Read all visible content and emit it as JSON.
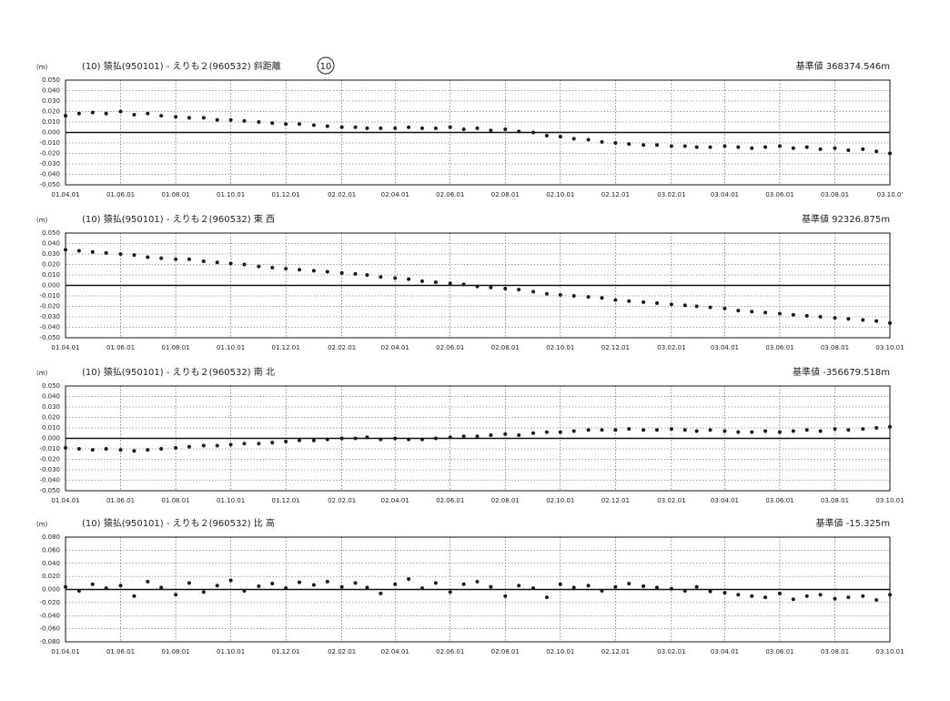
{
  "chart_data": [
    {
      "type": "scatter",
      "title": "(10) 猿払(950101) - えりも２(960532) 斜距離",
      "annotation": "10",
      "subtitle": "基準値 368374.546m",
      "ylabel": "(m)",
      "color": "#1a1a1a",
      "grid": true,
      "zero_line": true,
      "xlim": [
        "2001-04-01",
        "2003-10-01"
      ],
      "xticks": [
        {
          "value": "2001-04-01",
          "label": "01.04.01"
        },
        {
          "value": "2001-06-01",
          "label": "01.06.01"
        },
        {
          "value": "2001-08-01",
          "label": "01.08.01"
        },
        {
          "value": "2001-10-01",
          "label": "01.10.01"
        },
        {
          "value": "2001-12-01",
          "label": "01.12.01"
        },
        {
          "value": "2002-02-01",
          "label": "02.02.01"
        },
        {
          "value": "2002-04-01",
          "label": "02.04.01"
        },
        {
          "value": "2002-06-01",
          "label": "02.06.01"
        },
        {
          "value": "2002-08-01",
          "label": "02.08.01"
        },
        {
          "value": "2002-10-01",
          "label": "02.10.01"
        },
        {
          "value": "2002-12-01",
          "label": "02.12.01"
        },
        {
          "value": "2003-02-01",
          "label": "03.02.01"
        },
        {
          "value": "2003-04-01",
          "label": "03.04.01"
        },
        {
          "value": "2003-06-01",
          "label": "03.06.01"
        },
        {
          "value": "2003-08-01",
          "label": "03.08.01"
        },
        {
          "value": "2003-10-01",
          "label": "03.10.0'"
        }
      ],
      "ylim": [
        -0.05,
        0.05
      ],
      "yticks": [
        {
          "value": 0.05,
          "label": "0.050"
        },
        {
          "value": 0.04,
          "label": "0.040"
        },
        {
          "value": 0.03,
          "label": "0.030"
        },
        {
          "value": 0.02,
          "label": "0.020"
        },
        {
          "value": 0.01,
          "label": "0.010"
        },
        {
          "value": 0,
          "label": "0.000"
        },
        {
          "value": -0.01,
          "label": "-0.010"
        },
        {
          "value": -0.02,
          "label": "-0.020"
        },
        {
          "value": -0.03,
          "label": "-0.030"
        },
        {
          "value": -0.04,
          "label": "-0.040"
        },
        {
          "value": -0.05,
          "label": "-0.050"
        }
      ],
      "x": [
        "2001-04-01",
        "2001-04-16",
        "2001-05-01",
        "2001-05-16",
        "2001-06-01",
        "2001-06-16",
        "2001-07-01",
        "2001-07-16",
        "2001-08-01",
        "2001-08-16",
        "2001-09-01",
        "2001-09-16",
        "2001-10-01",
        "2001-10-16",
        "2001-11-01",
        "2001-11-16",
        "2001-12-01",
        "2001-12-16",
        "2002-01-01",
        "2002-01-16",
        "2002-02-01",
        "2002-02-16",
        "2002-03-01",
        "2002-03-16",
        "2002-04-01",
        "2002-04-16",
        "2002-05-01",
        "2002-05-16",
        "2002-06-01",
        "2002-06-16",
        "2002-07-01",
        "2002-07-16",
        "2002-08-01",
        "2002-08-16",
        "2002-09-01",
        "2002-09-16",
        "2002-10-01",
        "2002-10-16",
        "2002-11-01",
        "2002-11-16",
        "2002-12-01",
        "2002-12-16",
        "2003-01-01",
        "2003-01-16",
        "2003-02-01",
        "2003-02-16",
        "2003-03-01",
        "2003-03-16",
        "2003-04-01",
        "2003-04-16",
        "2003-05-01",
        "2003-05-16",
        "2003-06-01",
        "2003-06-16",
        "2003-07-01",
        "2003-07-16",
        "2003-08-01",
        "2003-08-16",
        "2003-09-01",
        "2003-09-16",
        "2003-10-01"
      ],
      "values": [
        0.016,
        0.018,
        0.019,
        0.018,
        0.02,
        0.017,
        0.018,
        0.016,
        0.015,
        0.014,
        0.014,
        0.012,
        0.012,
        0.011,
        0.01,
        0.009,
        0.008,
        0.008,
        0.007,
        0.006,
        0.005,
        0.005,
        0.004,
        0.004,
        0.004,
        0.005,
        0.004,
        0.004,
        0.005,
        0.003,
        0.004,
        0.002,
        0.003,
        0.001,
        0.0,
        -0.003,
        -0.004,
        -0.006,
        -0.007,
        -0.009,
        -0.01,
        -0.011,
        -0.012,
        -0.012,
        -0.013,
        -0.013,
        -0.014,
        -0.014,
        -0.013,
        -0.014,
        -0.015,
        -0.014,
        -0.013,
        -0.015,
        -0.014,
        -0.016,
        -0.015,
        -0.017,
        -0.016,
        -0.018,
        -0.02
      ]
    },
    {
      "type": "scatter",
      "title": "(10) 猿払(950101) - えりも２(960532) 東 西",
      "subtitle": "基準値 92326.875m",
      "ylabel": "(m)",
      "color": "#1a1a1a",
      "grid": true,
      "zero_line": true,
      "xlim": [
        "2001-04-01",
        "2003-10-01"
      ],
      "xticks": [
        {
          "value": "2001-04-01",
          "label": "01.04.01"
        },
        {
          "value": "2001-06-01",
          "label": "01.06.01"
        },
        {
          "value": "2001-08-01",
          "label": "01.08.01"
        },
        {
          "value": "2001-10-01",
          "label": "01.10.01"
        },
        {
          "value": "2001-12-01",
          "label": "01.12.01"
        },
        {
          "value": "2002-02-01",
          "label": "02.02.01"
        },
        {
          "value": "2002-04-01",
          "label": "02.04.01"
        },
        {
          "value": "2002-06-01",
          "label": "02.06.01"
        },
        {
          "value": "2002-08-01",
          "label": "02.08.01"
        },
        {
          "value": "2002-10-01",
          "label": "02.10.01"
        },
        {
          "value": "2002-12-01",
          "label": "02.12.01"
        },
        {
          "value": "2003-02-01",
          "label": "03.02.01"
        },
        {
          "value": "2003-04-01",
          "label": "03.04.01"
        },
        {
          "value": "2003-06-01",
          "label": "03.06.01"
        },
        {
          "value": "2003-08-01",
          "label": "03.08.01"
        },
        {
          "value": "2003-10-01",
          "label": "03.10.01"
        }
      ],
      "ylim": [
        -0.05,
        0.05
      ],
      "yticks": [
        {
          "value": 0.05,
          "label": "0.050"
        },
        {
          "value": 0.04,
          "label": "0.040"
        },
        {
          "value": 0.03,
          "label": "0.030"
        },
        {
          "value": 0.02,
          "label": "0.020"
        },
        {
          "value": 0.01,
          "label": "0.010"
        },
        {
          "value": 0,
          "label": "0.000"
        },
        {
          "value": -0.01,
          "label": "-0.010"
        },
        {
          "value": -0.02,
          "label": "-0.020"
        },
        {
          "value": -0.03,
          "label": "-0.030"
        },
        {
          "value": -0.04,
          "label": "-0.040"
        },
        {
          "value": -0.05,
          "label": "-0.050"
        }
      ],
      "x": [
        "2001-04-01",
        "2001-04-16",
        "2001-05-01",
        "2001-05-16",
        "2001-06-01",
        "2001-06-16",
        "2001-07-01",
        "2001-07-16",
        "2001-08-01",
        "2001-08-16",
        "2001-09-01",
        "2001-09-16",
        "2001-10-01",
        "2001-10-16",
        "2001-11-01",
        "2001-11-16",
        "2001-12-01",
        "2001-12-16",
        "2002-01-01",
        "2002-01-16",
        "2002-02-01",
        "2002-02-16",
        "2002-03-01",
        "2002-03-16",
        "2002-04-01",
        "2002-04-16",
        "2002-05-01",
        "2002-05-16",
        "2002-06-01",
        "2002-06-16",
        "2002-07-01",
        "2002-07-16",
        "2002-08-01",
        "2002-08-16",
        "2002-09-01",
        "2002-09-16",
        "2002-10-01",
        "2002-10-16",
        "2002-11-01",
        "2002-11-16",
        "2002-12-01",
        "2002-12-16",
        "2003-01-01",
        "2003-01-16",
        "2003-02-01",
        "2003-02-16",
        "2003-03-01",
        "2003-03-16",
        "2003-04-01",
        "2003-04-16",
        "2003-05-01",
        "2003-05-16",
        "2003-06-01",
        "2003-06-16",
        "2003-07-01",
        "2003-07-16",
        "2003-08-01",
        "2003-08-16",
        "2003-09-01",
        "2003-09-16",
        "2003-10-01"
      ],
      "values": [
        0.034,
        0.033,
        0.032,
        0.031,
        0.03,
        0.029,
        0.027,
        0.026,
        0.025,
        0.025,
        0.023,
        0.022,
        0.021,
        0.02,
        0.018,
        0.017,
        0.016,
        0.015,
        0.014,
        0.013,
        0.012,
        0.011,
        0.01,
        0.008,
        0.007,
        0.006,
        0.004,
        0.003,
        0.002,
        0.001,
        -0.001,
        -0.002,
        -0.003,
        -0.004,
        -0.006,
        -0.008,
        -0.009,
        -0.01,
        -0.011,
        -0.012,
        -0.014,
        -0.015,
        -0.016,
        -0.017,
        -0.018,
        -0.019,
        -0.02,
        -0.021,
        -0.022,
        -0.024,
        -0.025,
        -0.026,
        -0.027,
        -0.028,
        -0.029,
        -0.03,
        -0.031,
        -0.032,
        -0.033,
        -0.034,
        -0.036
      ]
    },
    {
      "type": "scatter",
      "title": "(10) 猿払(950101) - えりも２(960532) 南 北",
      "subtitle": "基準値 -356679.518m",
      "ylabel": "(m)",
      "color": "#1a1a1a",
      "grid": true,
      "zero_line": true,
      "xlim": [
        "2001-04-01",
        "2003-10-01"
      ],
      "xticks": [
        {
          "value": "2001-04-01",
          "label": "01.04.01"
        },
        {
          "value": "2001-06-01",
          "label": "01.06.01"
        },
        {
          "value": "2001-08-01",
          "label": "01.08.01"
        },
        {
          "value": "2001-10-01",
          "label": "01.10.01"
        },
        {
          "value": "2001-12-01",
          "label": "01.12.01"
        },
        {
          "value": "2002-02-01",
          "label": "02.02.01"
        },
        {
          "value": "2002-04-01",
          "label": "02.04.01"
        },
        {
          "value": "2002-06-01",
          "label": "02.06.01"
        },
        {
          "value": "2002-08-01",
          "label": "02.08.01"
        },
        {
          "value": "2002-10-01",
          "label": "02.10.01"
        },
        {
          "value": "2002-12-01",
          "label": "02.12.01"
        },
        {
          "value": "2003-02-01",
          "label": "03.02.01"
        },
        {
          "value": "2003-04-01",
          "label": "03.04.01"
        },
        {
          "value": "2003-06-01",
          "label": "03.06.01"
        },
        {
          "value": "2003-08-01",
          "label": "03.08.01"
        },
        {
          "value": "2003-10-01",
          "label": "03.10.01"
        }
      ],
      "ylim": [
        -0.05,
        0.05
      ],
      "yticks": [
        {
          "value": 0.05,
          "label": "0.050"
        },
        {
          "value": 0.04,
          "label": "0.040"
        },
        {
          "value": 0.03,
          "label": "0.030"
        },
        {
          "value": 0.02,
          "label": "0.020"
        },
        {
          "value": 0.01,
          "label": "0.010"
        },
        {
          "value": 0,
          "label": "0.000"
        },
        {
          "value": -0.01,
          "label": "-0.010"
        },
        {
          "value": -0.02,
          "label": "-0.020"
        },
        {
          "value": -0.03,
          "label": "-0.030"
        },
        {
          "value": -0.04,
          "label": "-0.040"
        },
        {
          "value": -0.05,
          "label": "-0.050"
        }
      ],
      "x": [
        "2001-04-01",
        "2001-04-16",
        "2001-05-01",
        "2001-05-16",
        "2001-06-01",
        "2001-06-16",
        "2001-07-01",
        "2001-07-16",
        "2001-08-01",
        "2001-08-16",
        "2001-09-01",
        "2001-09-16",
        "2001-10-01",
        "2001-10-16",
        "2001-11-01",
        "2001-11-16",
        "2001-12-01",
        "2001-12-16",
        "2002-01-01",
        "2002-01-16",
        "2002-02-01",
        "2002-02-16",
        "2002-03-01",
        "2002-03-16",
        "2002-04-01",
        "2002-04-16",
        "2002-05-01",
        "2002-05-16",
        "2002-06-01",
        "2002-06-16",
        "2002-07-01",
        "2002-07-16",
        "2002-08-01",
        "2002-08-16",
        "2002-09-01",
        "2002-09-16",
        "2002-10-01",
        "2002-10-16",
        "2002-11-01",
        "2002-11-16",
        "2002-12-01",
        "2002-12-16",
        "2003-01-01",
        "2003-01-16",
        "2003-02-01",
        "2003-02-16",
        "2003-03-01",
        "2003-03-16",
        "2003-04-01",
        "2003-04-16",
        "2003-05-01",
        "2003-05-16",
        "2003-06-01",
        "2003-06-16",
        "2003-07-01",
        "2003-07-16",
        "2003-08-01",
        "2003-08-16",
        "2003-09-01",
        "2003-09-16",
        "2003-10-01"
      ],
      "values": [
        -0.009,
        -0.01,
        -0.011,
        -0.01,
        -0.011,
        -0.012,
        -0.011,
        -0.01,
        -0.009,
        -0.008,
        -0.007,
        -0.007,
        -0.006,
        -0.005,
        -0.005,
        -0.004,
        -0.003,
        -0.002,
        -0.002,
        -0.001,
        0.0,
        0.0,
        0.001,
        -0.001,
        0.0,
        -0.001,
        -0.001,
        0.0,
        0.001,
        0.002,
        0.002,
        0.003,
        0.004,
        0.003,
        0.005,
        0.006,
        0.006,
        0.007,
        0.008,
        0.008,
        0.008,
        0.009,
        0.008,
        0.008,
        0.009,
        0.008,
        0.007,
        0.008,
        0.007,
        0.006,
        0.006,
        0.007,
        0.006,
        0.007,
        0.008,
        0.007,
        0.009,
        0.008,
        0.009,
        0.01,
        0.011
      ]
    },
    {
      "type": "scatter",
      "title": "(10) 猿払(950101) - えりも２(960532) 比 高",
      "subtitle": "基準値 -15.325m",
      "ylabel": "(m)",
      "color": "#1a1a1a",
      "grid": true,
      "zero_line": true,
      "xlim": [
        "2001-04-01",
        "2003-10-01"
      ],
      "xticks": [
        {
          "value": "2001-04-01",
          "label": "01.04.01"
        },
        {
          "value": "2001-06-01",
          "label": "01.06.01"
        },
        {
          "value": "2001-08-01",
          "label": "01.08.01"
        },
        {
          "value": "2001-10-01",
          "label": "01.10.01"
        },
        {
          "value": "2001-12-01",
          "label": "01.12.01"
        },
        {
          "value": "2002-02-01",
          "label": "02.02.01"
        },
        {
          "value": "2002-04-01",
          "label": "02.04.01"
        },
        {
          "value": "2002-06-01",
          "label": "02.06.01"
        },
        {
          "value": "2002-08-01",
          "label": "02.08.01"
        },
        {
          "value": "2002-10-01",
          "label": "02.10.01"
        },
        {
          "value": "2002-12-01",
          "label": "02.12.01"
        },
        {
          "value": "2003-02-01",
          "label": "03.02.01"
        },
        {
          "value": "2003-04-01",
          "label": "03.04.01"
        },
        {
          "value": "2003-06-01",
          "label": "03.06.01"
        },
        {
          "value": "2003-08-01",
          "label": "03.08.01"
        },
        {
          "value": "2003-10-01",
          "label": "03.10.01"
        }
      ],
      "ylim": [
        -0.08,
        0.08
      ],
      "yticks": [
        {
          "value": 0.08,
          "label": "0.080"
        },
        {
          "value": 0.06,
          "label": "0.060"
        },
        {
          "value": 0.04,
          "label": "0.040"
        },
        {
          "value": 0.02,
          "label": "0.020"
        },
        {
          "value": 0,
          "label": "0.000"
        },
        {
          "value": -0.02,
          "label": "-0.020"
        },
        {
          "value": -0.04,
          "label": "-0.040"
        },
        {
          "value": -0.06,
          "label": "-0.060"
        },
        {
          "value": -0.08,
          "label": "-0.080"
        }
      ],
      "x": [
        "2001-04-01",
        "2001-04-16",
        "2001-05-01",
        "2001-05-16",
        "2001-06-01",
        "2001-06-16",
        "2001-07-01",
        "2001-07-16",
        "2001-08-01",
        "2001-08-16",
        "2001-09-01",
        "2001-09-16",
        "2001-10-01",
        "2001-10-16",
        "2001-11-01",
        "2001-11-16",
        "2001-12-01",
        "2001-12-16",
        "2002-01-01",
        "2002-01-16",
        "2002-02-01",
        "2002-02-16",
        "2002-03-01",
        "2002-03-16",
        "2002-04-01",
        "2002-04-16",
        "2002-05-01",
        "2002-05-16",
        "2002-06-01",
        "2002-06-16",
        "2002-07-01",
        "2002-07-16",
        "2002-08-01",
        "2002-08-16",
        "2002-09-01",
        "2002-09-16",
        "2002-10-01",
        "2002-10-16",
        "2002-11-01",
        "2002-11-16",
        "2002-12-01",
        "2002-12-16",
        "2003-01-01",
        "2003-01-16",
        "2003-02-01",
        "2003-02-16",
        "2003-03-01",
        "2003-03-16",
        "2003-04-01",
        "2003-04-16",
        "2003-05-01",
        "2003-05-16",
        "2003-06-01",
        "2003-06-16",
        "2003-07-01",
        "2003-07-16",
        "2003-08-01",
        "2003-08-16",
        "2003-09-01",
        "2003-09-16",
        "2003-10-01"
      ],
      "values": [
        0.004,
        -0.002,
        0.008,
        0.002,
        0.006,
        -0.01,
        0.012,
        0.003,
        -0.008,
        0.01,
        -0.004,
        0.006,
        0.014,
        -0.002,
        0.005,
        0.009,
        0.002,
        0.011,
        0.007,
        0.012,
        0.004,
        0.01,
        0.003,
        -0.006,
        0.008,
        0.016,
        0.002,
        0.01,
        -0.004,
        0.008,
        0.012,
        0.004,
        -0.01,
        0.006,
        0.002,
        -0.012,
        0.008,
        0.003,
        0.006,
        -0.002,
        0.004,
        0.009,
        0.005,
        0.003,
        0.001,
        -0.002,
        0.004,
        -0.003,
        -0.005,
        -0.008,
        -0.01,
        -0.012,
        -0.006,
        -0.015,
        -0.01,
        -0.008,
        -0.014,
        -0.012,
        -0.01,
        -0.016,
        -0.008
      ]
    }
  ]
}
